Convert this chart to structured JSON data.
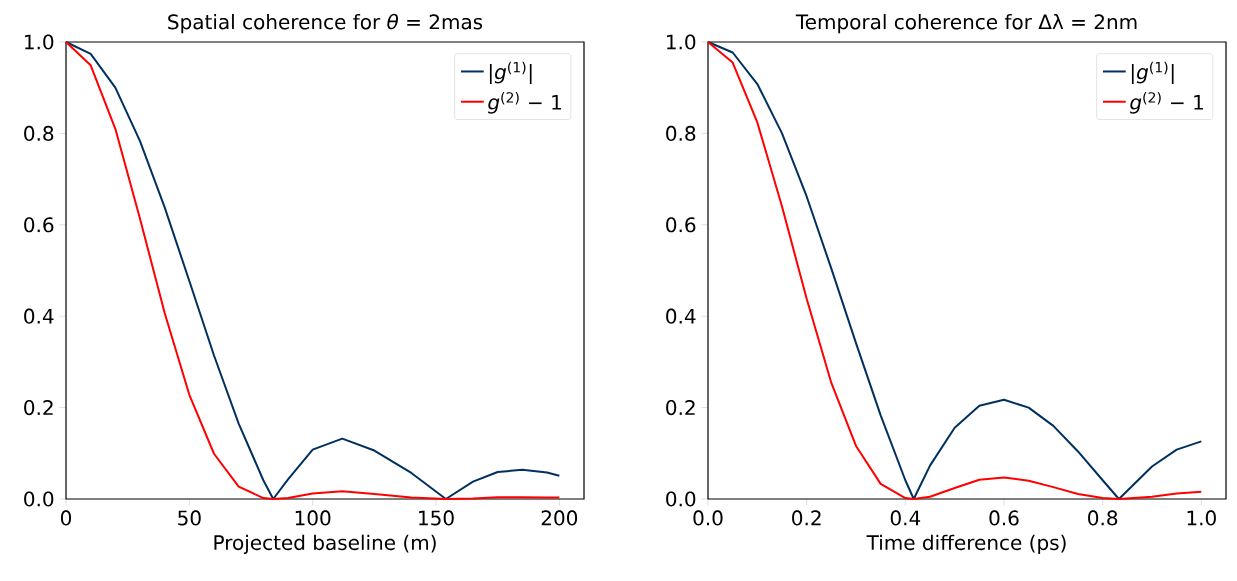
{
  "chart_data": [
    {
      "type": "line",
      "title": "Spatial coherence for *θ* = 2mas",
      "xlabel": "Projected baseline (m)",
      "x": [
        0,
        10,
        20,
        30,
        40,
        50,
        60,
        70,
        80,
        84,
        90,
        100,
        112,
        125,
        140,
        154,
        165,
        175,
        185,
        195,
        200
      ],
      "series": [
        {
          "name": "|*g*$^{(1)}$|",
          "color": "#00305f",
          "values": [
            1,
            0.974,
            0.9,
            0.783,
            0.638,
            0.477,
            0.314,
            0.165,
            0.041,
            0,
            0.043,
            0.108,
            0.132,
            0.106,
            0.057,
            0,
            0.038,
            0.059,
            0.064,
            0.058,
            0.051
          ]
        },
        {
          "name": "*g*$^{(2)}$ − 1",
          "color": "#ff0000",
          "values": [
            1,
            0.949,
            0.81,
            0.613,
            0.407,
            0.228,
            0.099,
            0.027,
            0.002,
            0,
            0.002,
            0.012,
            0.017,
            0.011,
            0.003,
            0,
            0.001,
            0.004,
            0.004,
            0.003,
            0.003
          ]
        }
      ],
      "xlim": [
        0,
        210
      ],
      "ylim": [
        0,
        1
      ],
      "xticks": [
        0,
        50,
        100,
        150,
        200
      ],
      "yticks": [
        {
          "value": 0,
          "label": "0.0"
        },
        {
          "value": 0.2,
          "label": "0.2"
        },
        {
          "value": 0.4,
          "label": "0.4"
        },
        {
          "value": 0.6,
          "label": "0.6"
        },
        {
          "value": 0.8,
          "label": "0.8"
        },
        {
          "value": 1,
          "label": "1.0"
        }
      ],
      "legend": "top right",
      "line_style": "solid",
      "marker": "none"
    },
    {
      "type": "line",
      "title": "Temporal coherence for Δλ = 2nm",
      "xlabel": "Time difference (ps)",
      "x": [
        0,
        0.05,
        0.1,
        0.15,
        0.2,
        0.25,
        0.3,
        0.35,
        0.4,
        0.417,
        0.45,
        0.5,
        0.55,
        0.6,
        0.65,
        0.7,
        0.75,
        0.8,
        0.833,
        0.9,
        0.95,
        1.0
      ],
      "series": [
        {
          "name": "|*g*$^{(1)}$|",
          "color": "#00305f",
          "values": [
            1,
            0.977,
            0.908,
            0.8,
            0.662,
            0.504,
            0.341,
            0.183,
            0.041,
            0,
            0.073,
            0.156,
            0.204,
            0.217,
            0.2,
            0.16,
            0.104,
            0.041,
            0,
            0.071,
            0.108,
            0.126
          ]
        },
        {
          "name": "*g*$^{(2)}$ − 1",
          "color": "#ff0000",
          "values": [
            1,
            0.955,
            0.824,
            0.64,
            0.438,
            0.254,
            0.116,
            0.033,
            0.002,
            0,
            0.005,
            0.024,
            0.042,
            0.047,
            0.04,
            0.026,
            0.011,
            0.002,
            0,
            0.005,
            0.012,
            0.016
          ]
        }
      ],
      "xlim": [
        0,
        1.05
      ],
      "ylim": [
        0,
        1
      ],
      "xticks": [
        {
          "value": 0,
          "label": "0.0"
        },
        {
          "value": 0.2,
          "label": "0.2"
        },
        {
          "value": 0.4,
          "label": "0.4"
        },
        {
          "value": 0.6,
          "label": "0.6"
        },
        {
          "value": 0.8,
          "label": "0.8"
        },
        {
          "value": 1,
          "label": "1.0"
        }
      ],
      "yticks": [
        {
          "value": 0,
          "label": "0.0"
        },
        {
          "value": 0.2,
          "label": "0.2"
        },
        {
          "value": 0.4,
          "label": "0.4"
        },
        {
          "value": 0.6,
          "label": "0.6"
        },
        {
          "value": 0.8,
          "label": "0.8"
        },
        {
          "value": 1,
          "label": "1.0"
        }
      ],
      "legend": "top right",
      "line_style": "solid",
      "marker": "none"
    }
  ]
}
